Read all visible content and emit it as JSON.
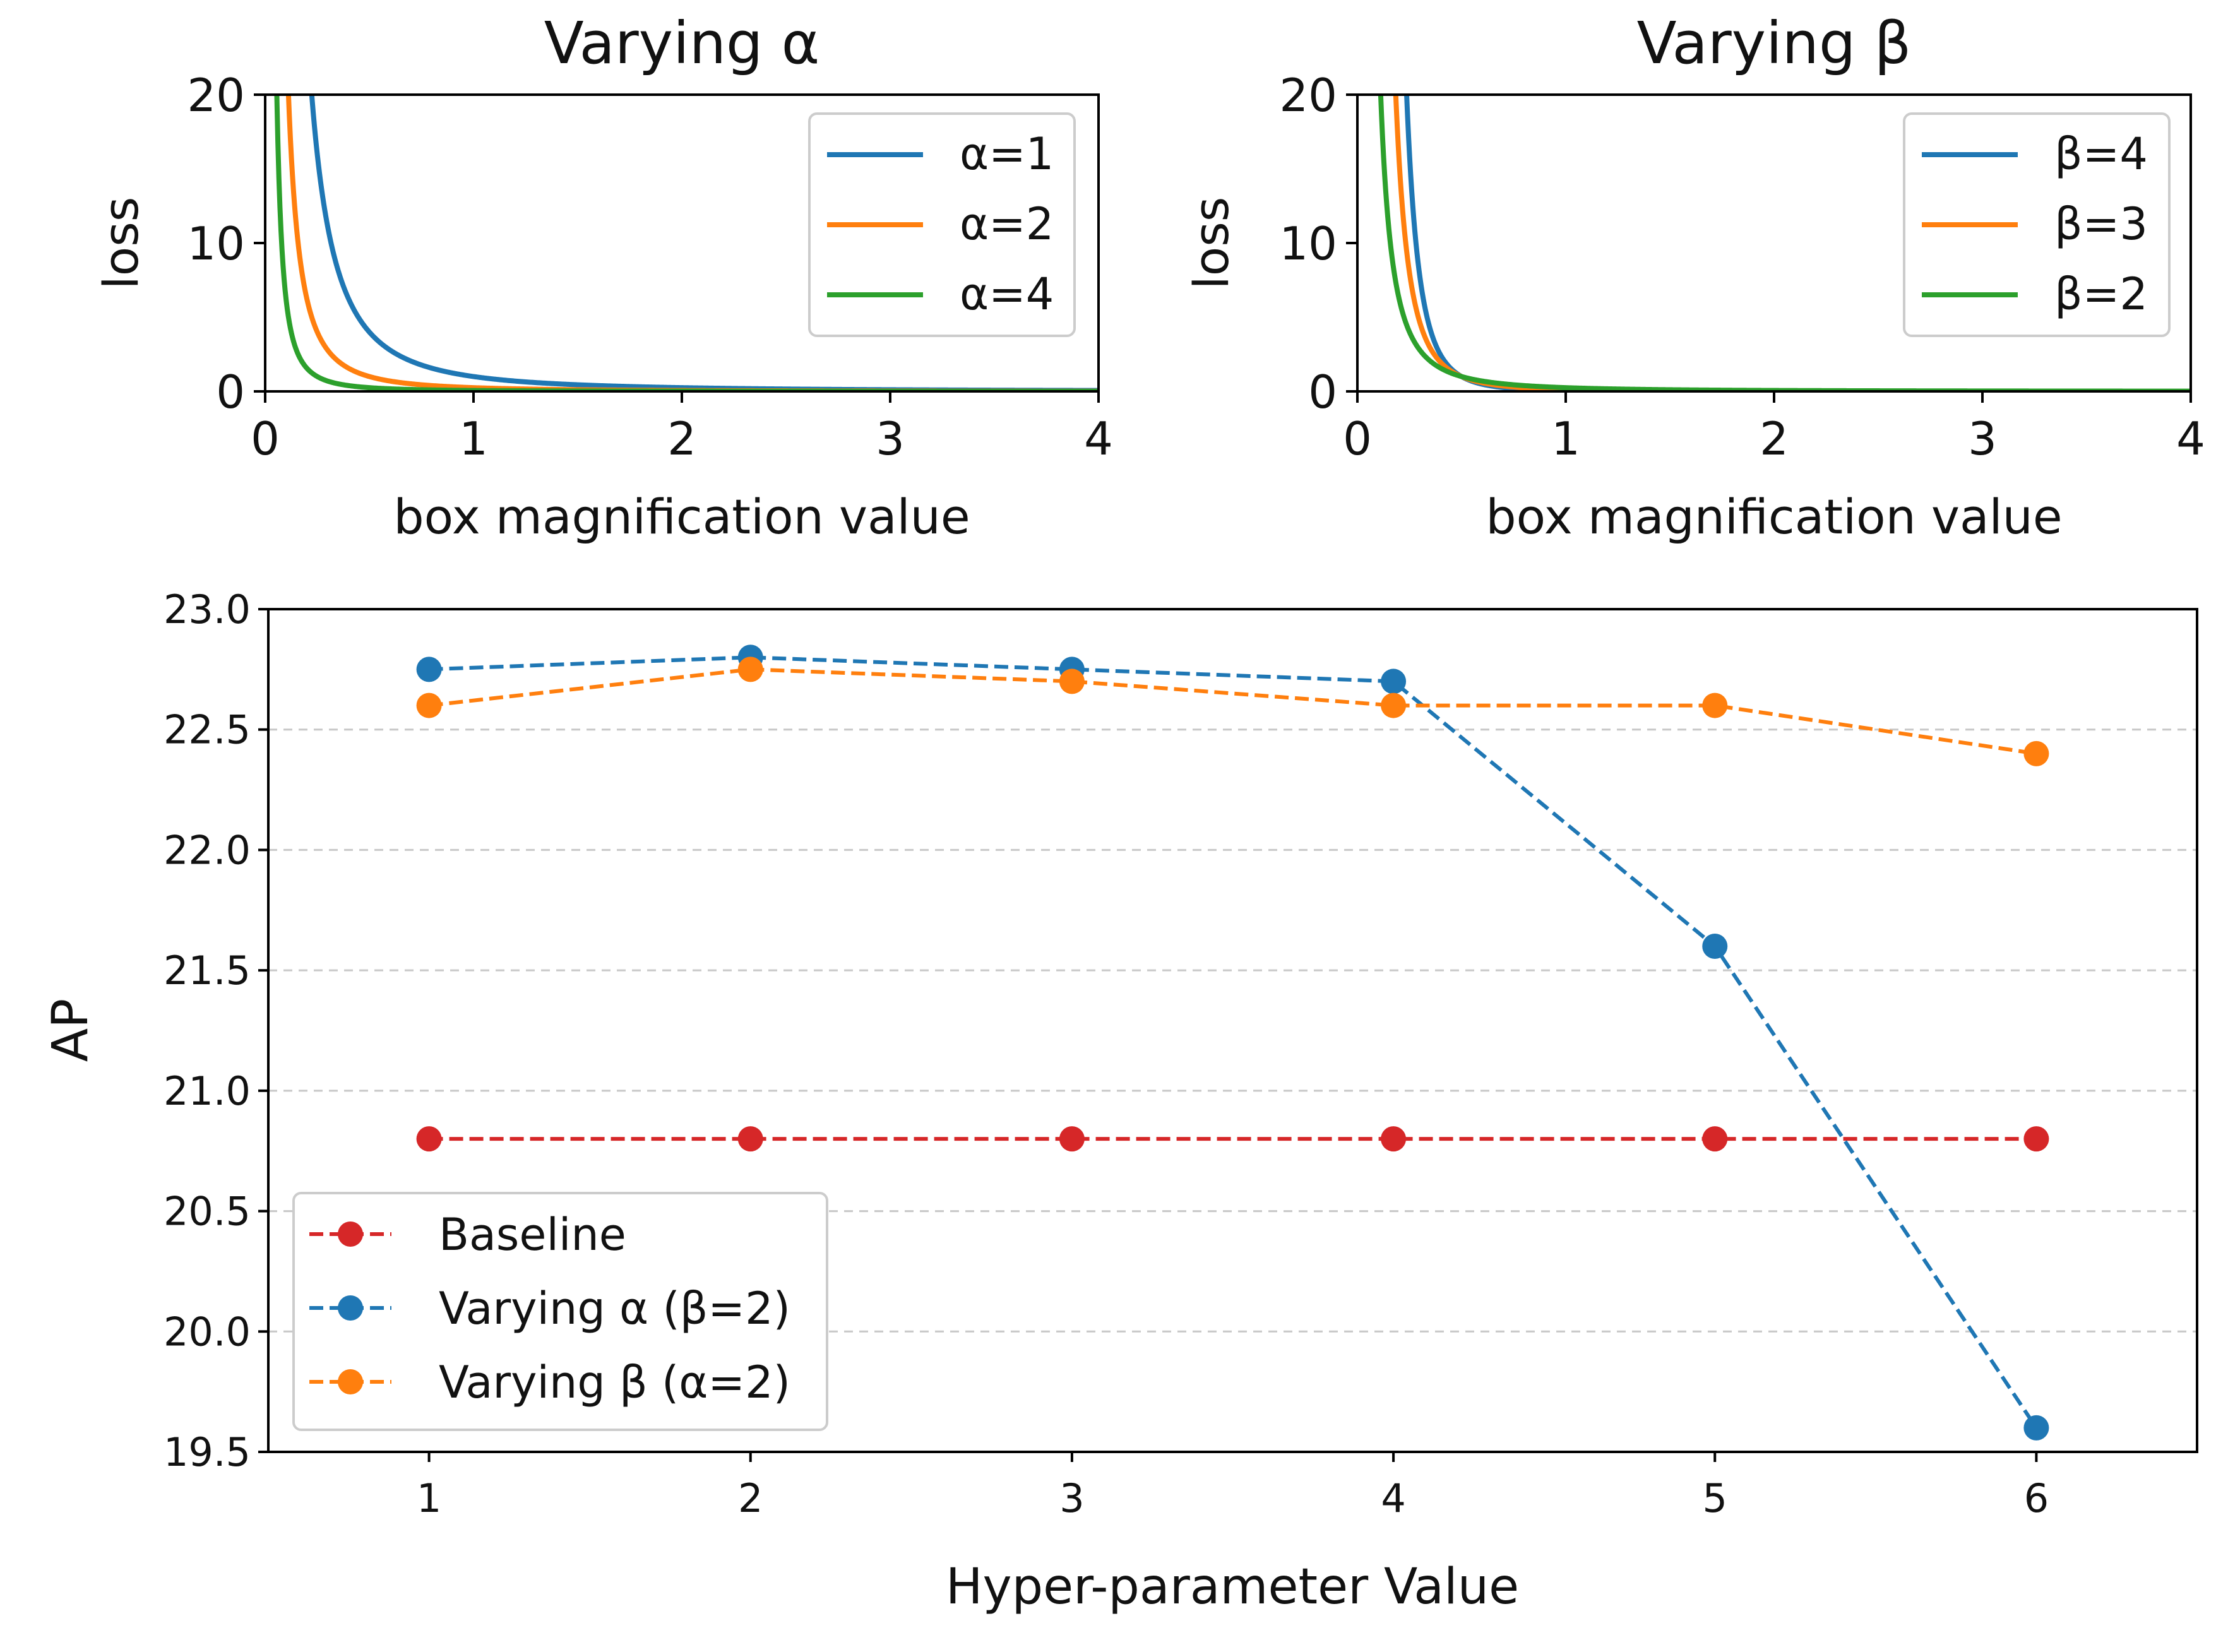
{
  "colors": {
    "blue": "#1f77b4",
    "orange": "#ff7f0e",
    "green": "#2ca02c",
    "red": "#d62728",
    "grid": "#c8c8c8"
  },
  "chart_data": [
    {
      "type": "line",
      "title": "Varying α",
      "xlabel": "box magnification value",
      "ylabel": "loss",
      "xlim": [
        0,
        4
      ],
      "ylim": [
        0,
        20
      ],
      "xticks": [
        "0",
        "1",
        "2",
        "3",
        "4"
      ],
      "yticks": [
        "0",
        "10",
        "20"
      ],
      "legend_position": "top-right",
      "series": [
        {
          "name": "α=1",
          "color": "blue",
          "alpha": 1,
          "beta": 2
        },
        {
          "name": "α=2",
          "color": "orange",
          "alpha": 2,
          "beta": 2
        },
        {
          "name": "α=4",
          "color": "green",
          "alpha": 4,
          "beta": 2
        }
      ]
    },
    {
      "type": "line",
      "title": "Varying β",
      "xlabel": "box magnification value",
      "ylabel": "loss",
      "xlim": [
        0,
        4
      ],
      "ylim": [
        0,
        20
      ],
      "xticks": [
        "0",
        "1",
        "2",
        "3",
        "4"
      ],
      "yticks": [
        "0",
        "10",
        "20"
      ],
      "legend_position": "top-right",
      "series": [
        {
          "name": "β=4",
          "color": "blue",
          "beta": 4
        },
        {
          "name": "β=3",
          "color": "orange",
          "beta": 3
        },
        {
          "name": "β=2",
          "color": "green",
          "beta": 2
        }
      ]
    },
    {
      "type": "line",
      "title": "",
      "xlabel": "Hyper-parameter Value",
      "ylabel": "AP",
      "x": [
        1,
        2,
        3,
        4,
        5,
        6
      ],
      "xlim": [
        0.5,
        6.5
      ],
      "ylim": [
        19.5,
        23.0
      ],
      "xticks": [
        "1",
        "2",
        "3",
        "4",
        "5",
        "6"
      ],
      "yticks": [
        "19.5",
        "20.0",
        "20.5",
        "21.0",
        "21.5",
        "22.0",
        "22.5",
        "23.0"
      ],
      "grid": "horizontal dashed",
      "legend_position": "lower-left",
      "series": [
        {
          "name": "Baseline",
          "color": "red",
          "values": [
            20.8,
            20.8,
            20.8,
            20.8,
            20.8,
            20.8
          ]
        },
        {
          "name": "Varying α (β=2)",
          "color": "blue",
          "values": [
            22.75,
            22.8,
            22.75,
            22.7,
            21.6,
            19.6
          ]
        },
        {
          "name": "Varying β (α=2)",
          "color": "orange",
          "values": [
            22.6,
            22.75,
            22.7,
            22.6,
            22.6,
            22.4
          ]
        }
      ]
    }
  ]
}
